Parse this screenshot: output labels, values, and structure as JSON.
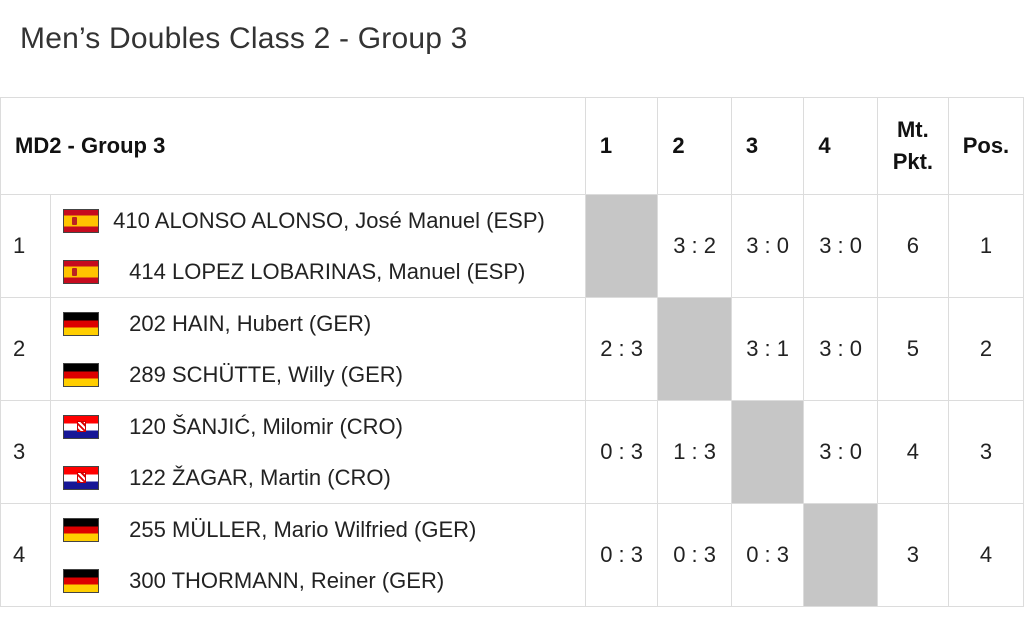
{
  "page": {
    "title": "Men’s Doubles Class 2 - Group 3"
  },
  "table": {
    "header": {
      "group": "MD2 - Group 3",
      "cols": [
        "1",
        "2",
        "3",
        "4"
      ],
      "mt_line1": "Mt.",
      "mt_line2": "Pkt.",
      "pos": "Pos."
    },
    "rows": [
      {
        "rank": "1",
        "players": [
          {
            "name": "410 ALONSO ALONSO, José Manuel (ESP)",
            "flag": "ESP"
          },
          {
            "name": "414 LOPEZ LOBARINAS, Manuel (ESP)",
            "flag": "ESP"
          }
        ],
        "scores": [
          "",
          "3 : 2",
          "3 : 0",
          "3 : 0"
        ],
        "pts": "6",
        "pos": "1"
      },
      {
        "rank": "2",
        "players": [
          {
            "name": "202 HAIN, Hubert (GER)",
            "flag": "GER"
          },
          {
            "name": "289 SCHÜTTE, Willy (GER)",
            "flag": "GER"
          }
        ],
        "scores": [
          "2 : 3",
          "",
          "3 : 1",
          "3 : 0"
        ],
        "pts": "5",
        "pos": "2"
      },
      {
        "rank": "3",
        "players": [
          {
            "name": "120 ŠANJIĆ, Milomir (CRO)",
            "flag": "CRO"
          },
          {
            "name": "122 ŽAGAR, Martin (CRO)",
            "flag": "CRO"
          }
        ],
        "scores": [
          "0 : 3",
          "1 : 3",
          "",
          "3 : 0"
        ],
        "pts": "4",
        "pos": "3"
      },
      {
        "rank": "4",
        "players": [
          {
            "name": "255 MÜLLER, Mario Wilfried (GER)",
            "flag": "GER"
          },
          {
            "name": "300 THORMANN, Reiner (GER)",
            "flag": "GER"
          }
        ],
        "scores": [
          "0 : 3",
          "0 : 3",
          "0 : 3",
          ""
        ],
        "pts": "3",
        "pos": "4"
      }
    ]
  }
}
